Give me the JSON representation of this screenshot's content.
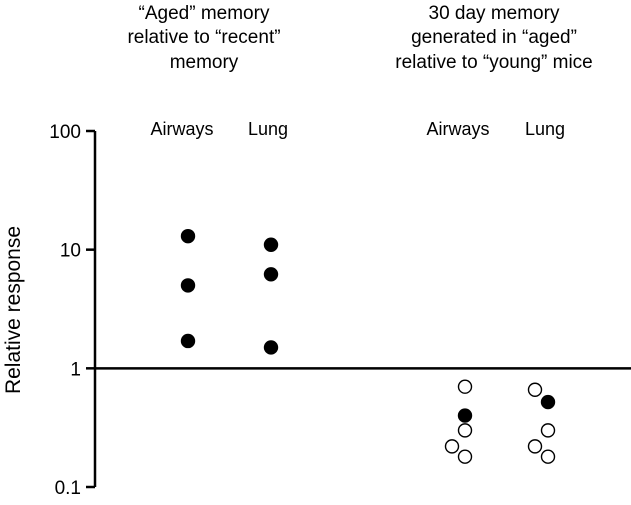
{
  "chart_data": {
    "type": "scatter",
    "yscale": "log",
    "ylim": [
      0.1,
      100
    ],
    "ylabel": "Relative response",
    "yticks": [
      {
        "value": 100,
        "label": "100"
      },
      {
        "value": 10,
        "label": "10"
      },
      {
        "value": 1,
        "label": "1"
      },
      {
        "value": 0.1,
        "label": "0.1"
      }
    ],
    "reference_line": 1,
    "groups": [
      {
        "title": [
          "“Aged” memory",
          "relative to “recent”",
          "memory"
        ],
        "categories": [
          {
            "label": "Airways",
            "points": [
              {
                "y": 13,
                "filled": true,
                "jitter": 0
              },
              {
                "y": 5,
                "filled": true,
                "jitter": 0
              },
              {
                "y": 1.7,
                "filled": true,
                "jitter": 0
              }
            ]
          },
          {
            "label": "Lung",
            "points": [
              {
                "y": 11,
                "filled": true,
                "jitter": 0
              },
              {
                "y": 6.2,
                "filled": true,
                "jitter": 0
              },
              {
                "y": 1.5,
                "filled": true,
                "jitter": 0
              }
            ]
          }
        ]
      },
      {
        "title": [
          "30 day memory",
          "generated in “aged”",
          "relative to “young” mice"
        ],
        "categories": [
          {
            "label": "Airways",
            "points": [
              {
                "y": 0.7,
                "filled": false,
                "jitter": 0
              },
              {
                "y": 0.4,
                "filled": true,
                "jitter": 0
              },
              {
                "y": 0.3,
                "filled": false,
                "jitter": 0
              },
              {
                "y": 0.22,
                "filled": false,
                "jitter": -1
              },
              {
                "y": 0.18,
                "filled": false,
                "jitter": 0
              }
            ]
          },
          {
            "label": "Lung",
            "points": [
              {
                "y": 0.66,
                "filled": false,
                "jitter": -1
              },
              {
                "y": 0.52,
                "filled": true,
                "jitter": 0
              },
              {
                "y": 0.3,
                "filled": false,
                "jitter": 0
              },
              {
                "y": 0.22,
                "filled": false,
                "jitter": -1
              },
              {
                "y": 0.18,
                "filled": false,
                "jitter": 0
              }
            ]
          }
        ]
      }
    ]
  }
}
